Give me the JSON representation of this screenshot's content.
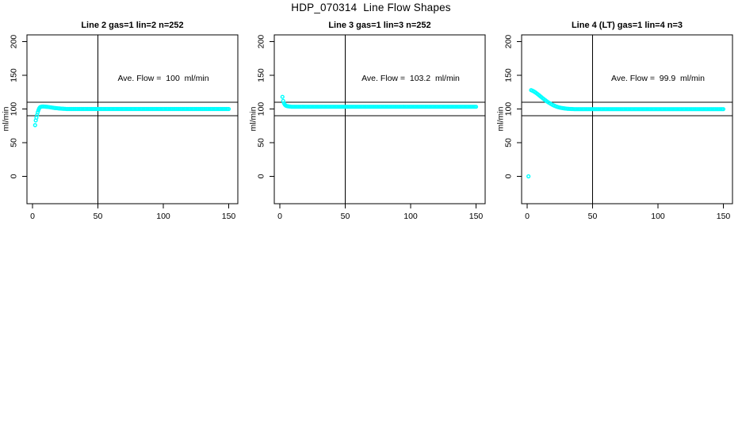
{
  "header": {
    "title": "HDP_070314  Line Flow Shapes"
  },
  "chart_data": [
    {
      "type": "scatter",
      "title": "Line 2 gas=1 lin=2 n=252",
      "ylabel": "ml/min",
      "annotation": "Ave. Flow =  100  ml/min",
      "ave_flow": 100,
      "n": 252,
      "x_ticks": [
        0,
        50,
        100,
        150
      ],
      "y_ticks": [
        0,
        50,
        100,
        150,
        200
      ],
      "xlim": [
        -4,
        156
      ],
      "ylim": [
        -40,
        210
      ],
      "ref_lines_y": [
        110,
        90
      ],
      "ref_line_x": 50,
      "point_color": "#00FFFF",
      "grid": false,
      "points": [
        [
          2,
          76
        ],
        [
          2.5,
          83
        ],
        [
          3,
          87
        ],
        [
          3.5,
          91
        ],
        [
          4,
          95
        ],
        [
          4.5,
          98
        ],
        [
          5,
          100.5
        ],
        [
          5.5,
          102
        ],
        [
          6,
          103
        ],
        [
          7,
          103.5
        ],
        [
          8,
          103.7
        ],
        [
          9,
          103.6
        ],
        [
          10,
          103.4
        ],
        [
          11,
          103.2
        ],
        [
          12,
          103
        ],
        [
          13,
          102.7
        ],
        [
          14,
          102.4
        ],
        [
          15,
          102.1
        ],
        [
          16,
          101.8
        ],
        [
          17,
          101.5
        ],
        [
          18,
          101.3
        ],
        [
          19,
          101.1
        ],
        [
          20,
          100.9
        ],
        [
          21,
          100.7
        ],
        [
          22,
          100.5
        ],
        [
          23,
          100.4
        ],
        [
          24,
          100.3
        ],
        [
          25,
          100.2
        ]
      ],
      "plateau_run": {
        "x0": 26,
        "x1": 150,
        "step": 1,
        "y": 100
      }
    },
    {
      "type": "scatter",
      "title": "Line 3 gas=1 lin=3 n=252",
      "ylabel": "ml/min",
      "annotation": "Ave. Flow =  103.2  ml/min",
      "ave_flow": 103.2,
      "n": 252,
      "x_ticks": [
        0,
        50,
        100,
        150
      ],
      "y_ticks": [
        0,
        50,
        100,
        150,
        200
      ],
      "xlim": [
        -4,
        156
      ],
      "ylim": [
        -40,
        210
      ],
      "ref_lines_y": [
        110,
        90
      ],
      "ref_line_x": 50,
      "point_color": "#00FFFF",
      "grid": false,
      "points": [
        [
          2,
          118
        ],
        [
          2.6,
          112
        ],
        [
          3.2,
          108.5
        ],
        [
          3.8,
          106.5
        ],
        [
          4.4,
          105.3
        ],
        [
          5,
          104.6
        ],
        [
          6,
          104.1
        ],
        [
          7,
          103.8
        ],
        [
          8,
          103.6
        ]
      ],
      "plateau_run": {
        "x0": 9,
        "x1": 150,
        "step": 1,
        "y": 103.3
      }
    },
    {
      "type": "scatter",
      "title": "Line 4 (LT) gas=1 lin=4 n=3",
      "ylabel": "ml/min",
      "annotation": "Ave. Flow =  99.9  ml/min",
      "ave_flow": 99.9,
      "n": 3,
      "x_ticks": [
        0,
        50,
        100,
        150
      ],
      "y_ticks": [
        0,
        50,
        100,
        150,
        200
      ],
      "xlim": [
        -4,
        156
      ],
      "ylim": [
        -40,
        210
      ],
      "ref_lines_y": [
        110,
        90
      ],
      "ref_line_x": 50,
      "point_color": "#00FFFF",
      "grid": false,
      "points": [
        [
          1,
          0
        ],
        [
          3,
          128
        ],
        [
          4,
          127.2
        ],
        [
          5,
          126.2
        ],
        [
          6,
          125
        ],
        [
          7,
          123.6
        ],
        [
          8,
          122.1
        ],
        [
          9,
          120.6
        ],
        [
          10,
          119
        ],
        [
          11,
          117.4
        ],
        [
          12,
          115.8
        ],
        [
          13,
          114.3
        ],
        [
          14,
          112.8
        ],
        [
          15,
          111.4
        ],
        [
          16,
          110.1
        ],
        [
          17,
          108.9
        ],
        [
          18,
          107.7
        ],
        [
          19,
          106.6
        ],
        [
          20,
          105.6
        ],
        [
          21,
          104.7
        ],
        [
          22,
          103.9
        ],
        [
          23,
          103.2
        ],
        [
          24,
          102.6
        ],
        [
          25,
          102.1
        ],
        [
          26,
          101.7
        ],
        [
          27,
          101.3
        ],
        [
          28,
          101
        ],
        [
          29,
          100.7
        ],
        [
          30,
          100.5
        ],
        [
          31,
          100.3
        ],
        [
          32,
          100.2
        ],
        [
          33,
          100.1
        ],
        [
          34,
          100
        ],
        [
          35,
          99.9
        ]
      ],
      "plateau_run": {
        "x0": 36,
        "x1": 150,
        "step": 1,
        "y": 99.8
      }
    }
  ],
  "style": {
    "point_color": "#00FFFF",
    "axis_color": "#000000",
    "text_color": "#000000",
    "background": "#ffffff"
  }
}
